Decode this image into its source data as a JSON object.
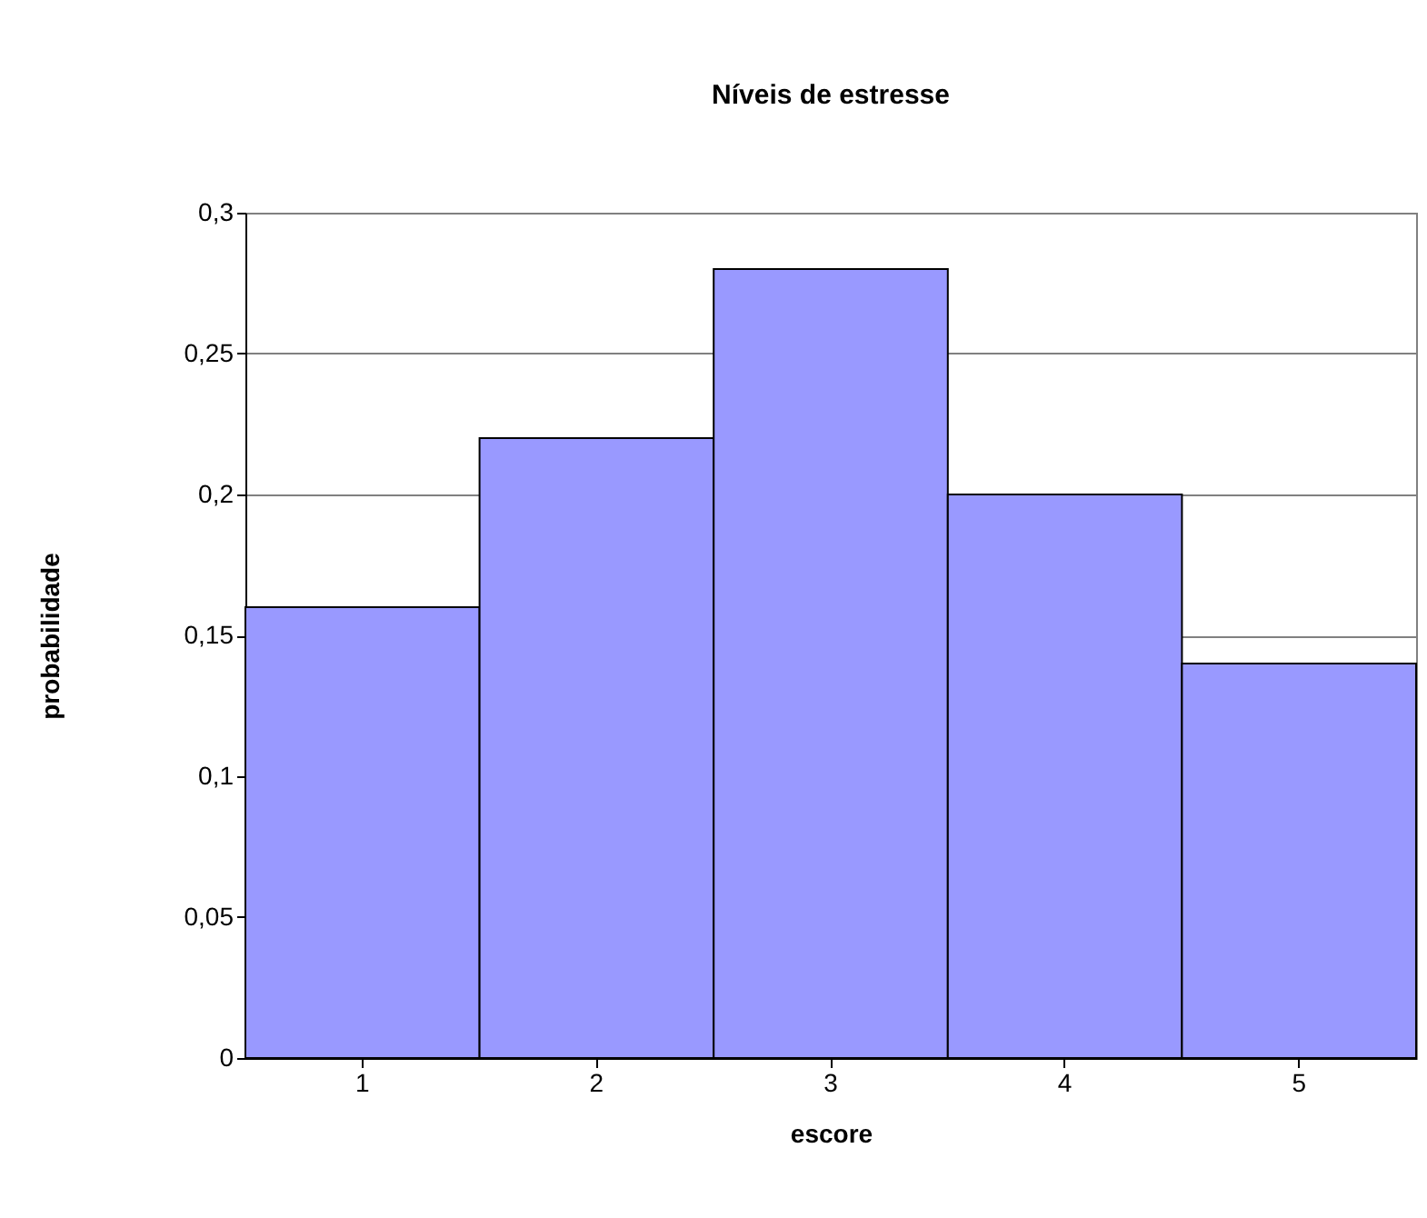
{
  "chart_data": {
    "type": "bar",
    "title": "Níveis de estresse",
    "xlabel": "escore",
    "ylabel": "probabilidade",
    "categories": [
      "1",
      "2",
      "3",
      "4",
      "5"
    ],
    "values": [
      0.16,
      0.22,
      0.28,
      0.2,
      0.14
    ],
    "color": "#9999ff",
    "ylim": [
      0,
      0.3
    ],
    "yticks": [
      {
        "value": 0,
        "label": "0"
      },
      {
        "value": 0.05,
        "label": "0,05"
      },
      {
        "value": 0.1,
        "label": "0,1"
      },
      {
        "value": 0.15,
        "label": "0,15"
      },
      {
        "value": 0.2,
        "label": "0,2"
      },
      {
        "value": 0.25,
        "label": "0,25"
      },
      {
        "value": 0.3,
        "label": "0,3"
      }
    ],
    "grid": "y"
  }
}
